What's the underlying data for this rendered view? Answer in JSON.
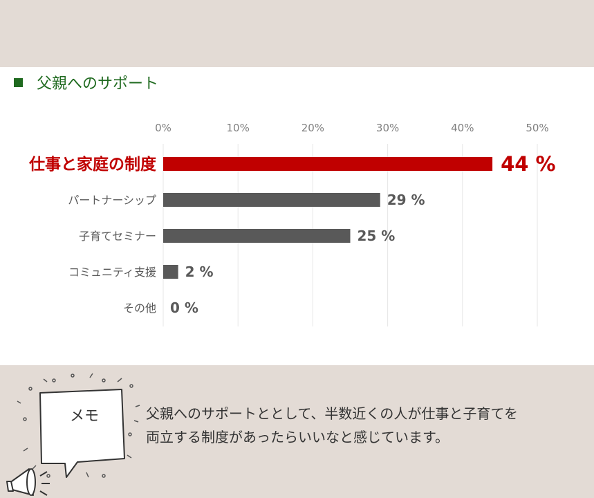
{
  "section": {
    "title": "父親へのサポート"
  },
  "chart_data": {
    "type": "bar",
    "orientation": "horizontal",
    "categories": [
      "仕事と家庭の制度",
      "パートナーシップ",
      "子育てセミナー",
      "コミュニティ支援",
      "その他"
    ],
    "values": [
      44,
      29,
      25,
      2,
      0
    ],
    "value_labels": [
      "44 %",
      "29 %",
      "25 %",
      "2 %",
      "0 %"
    ],
    "x_ticks": [
      "0%",
      "10%",
      "20%",
      "30%",
      "40%",
      "50%"
    ],
    "xlim": [
      0,
      50
    ],
    "grid": true,
    "highlight_index": 0,
    "colors": {
      "highlight": "#c00000",
      "bar": "#595959",
      "grid": "#e6e6e6",
      "tick": "#7f7f7f",
      "label": "#595959"
    }
  },
  "memo": {
    "label": "メモ",
    "text_lines": [
      "父親へのサポートととして、半数近くの人が仕事と子育てを",
      "両立する制度があったらいいなと感じています。"
    ]
  }
}
